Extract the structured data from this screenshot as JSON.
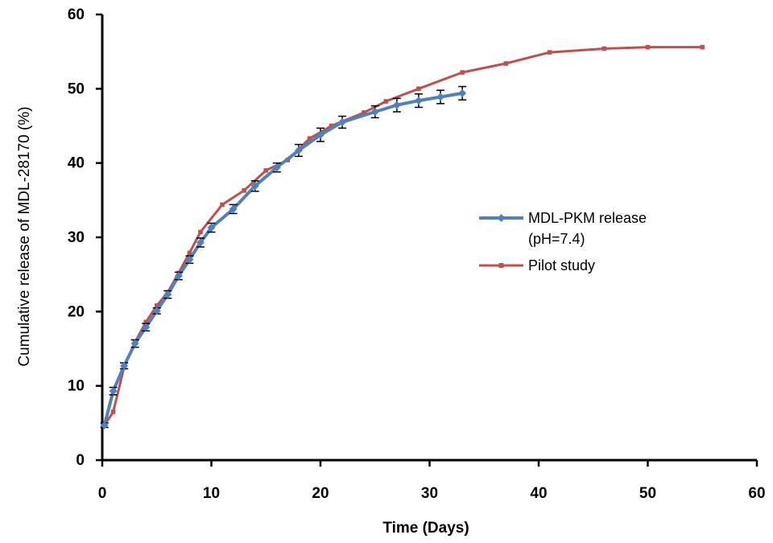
{
  "chart_data": {
    "type": "line",
    "title": "",
    "xlabel": "Time (Days)",
    "ylabel": "Cumulative release of MDL-28170 (%)",
    "xlim": [
      0,
      60
    ],
    "ylim": [
      0,
      60
    ],
    "xticks": [
      0,
      10,
      20,
      30,
      40,
      50,
      60
    ],
    "yticks": [
      0,
      10,
      20,
      30,
      40,
      50,
      60
    ],
    "grid": false,
    "legend_position": "right",
    "series": [
      {
        "name": "MDL-PKM release (pH=7.4)",
        "legend_lines": [
          "MDL-PKM release",
          "(pH=7.4)"
        ],
        "color": "#4F81BD",
        "marker": "diamond",
        "error_bars": true,
        "x": [
          0.2,
          1,
          2,
          3,
          4,
          5,
          6,
          7,
          8,
          9,
          10,
          12,
          14,
          16,
          18,
          20,
          22,
          25,
          27,
          29,
          31,
          33
        ],
        "y": [
          4.7,
          9.3,
          12.7,
          15.7,
          17.9,
          20.1,
          22.3,
          24.8,
          27.0,
          29.3,
          31.3,
          33.8,
          36.9,
          39.4,
          41.7,
          43.8,
          45.5,
          46.9,
          47.8,
          48.4,
          48.9,
          49.4
        ],
        "error": [
          0.3,
          0.5,
          0.4,
          0.5,
          0.5,
          0.4,
          0.5,
          0.5,
          0.5,
          0.6,
          0.6,
          0.6,
          0.7,
          0.6,
          0.8,
          0.9,
          0.8,
          0.8,
          0.9,
          0.9,
          0.9,
          0.9
        ]
      },
      {
        "name": "Pilot study",
        "legend_lines": [
          "Pilot study"
        ],
        "color": "#C0504D",
        "marker": "square",
        "error_bars": false,
        "x": [
          0.2,
          1,
          2,
          3,
          4,
          5,
          6,
          7,
          8,
          9,
          11,
          13,
          15,
          17,
          19,
          21,
          24,
          26,
          29,
          33,
          37,
          41,
          46,
          50,
          55
        ],
        "y": [
          4.7,
          6.5,
          12.5,
          15.9,
          18.6,
          20.8,
          22.6,
          25.2,
          27.9,
          30.7,
          34.4,
          36.3,
          39.0,
          40.4,
          43.3,
          45.0,
          46.8,
          48.3,
          50.0,
          52.2,
          53.4,
          54.9,
          55.4,
          55.6,
          55.6
        ]
      }
    ]
  }
}
